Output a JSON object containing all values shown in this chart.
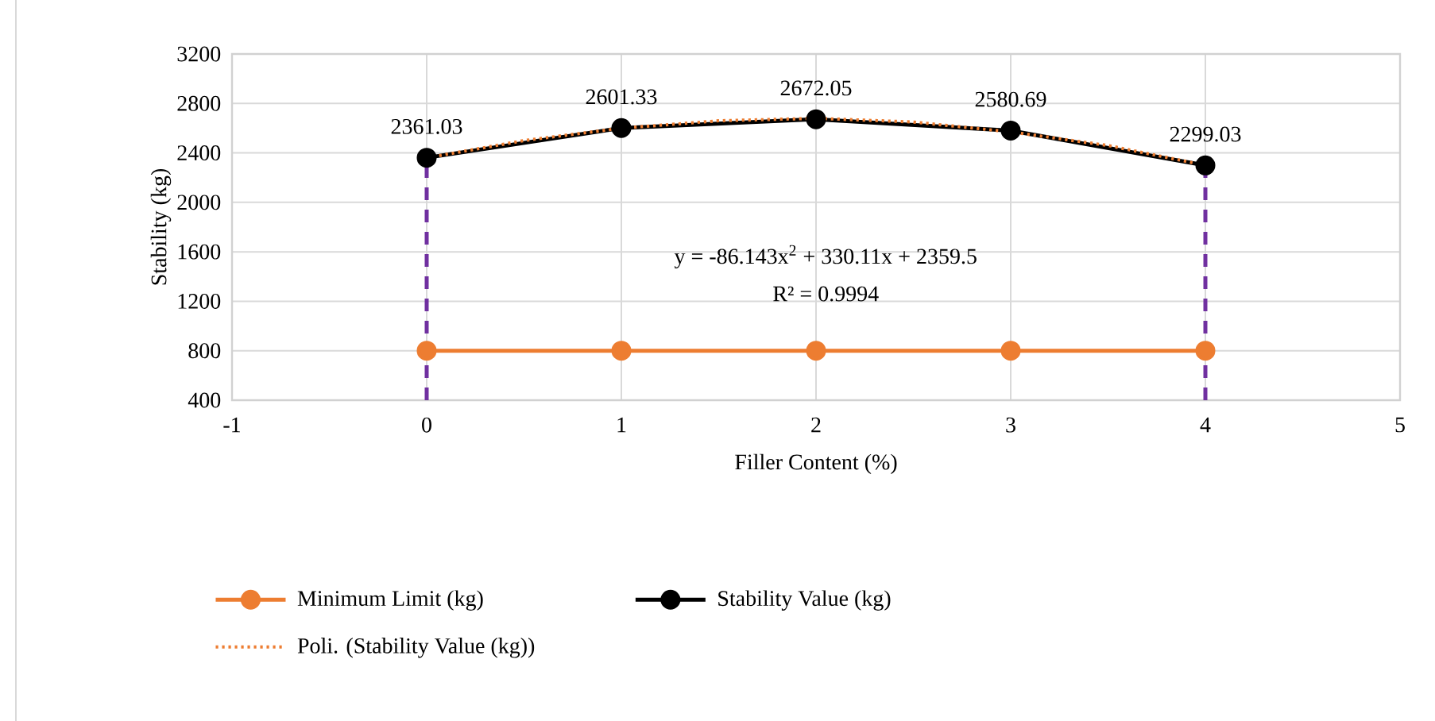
{
  "chart_data": {
    "type": "line",
    "xlabel": "Filler Content (%)",
    "ylabel": "Stability (kg)",
    "xlim": [
      -1,
      5
    ],
    "xticks": [
      -1,
      0,
      1,
      2,
      3,
      4,
      5
    ],
    "ylim": [
      400,
      3200
    ],
    "yticks": [
      400,
      800,
      1200,
      1600,
      2000,
      2400,
      2800,
      3200
    ],
    "grid": true,
    "legend": "bottom",
    "annotations": [
      "y = -86.143x$^{2}$ + 330.11x + 2359.5",
      "R² = 0.9994"
    ],
    "series": [
      {
        "color": "#7030a0",
        "line_style": "dashed",
        "marker": "none",
        "x": [
          0,
          0
        ],
        "values": [
          400,
          2360
        ]
      },
      {
        "color": "#7030a0",
        "line_style": "dashed",
        "marker": "none",
        "x": [
          4,
          4
        ],
        "values": [
          400,
          2300
        ]
      },
      {
        "name": "Minimum Limit (kg)",
        "color": "#ed7d31",
        "line_style": "solid",
        "marker": "circle",
        "x": [
          0,
          1,
          2,
          3,
          4
        ],
        "values": [
          800,
          800,
          800,
          800,
          800
        ]
      },
      {
        "name": "Stability Value (kg)",
        "color": "#000000",
        "line_style": "solid",
        "marker": "circle",
        "x": [
          0,
          1,
          2,
          3,
          4
        ],
        "values": [
          2361.03,
          2601.33,
          2672.05,
          2580.69,
          2299.03
        ],
        "value_labels": [
          "2361.03",
          "2601.33",
          "2672.05",
          "2580.69",
          "2299.03"
        ]
      },
      {
        "name": "Poli. (Stability Value (kg))",
        "color": "#ed7d31",
        "line_style": "dotted",
        "marker": "none",
        "x": [
          0,
          0.5,
          1,
          1.5,
          2,
          2.5,
          3,
          3.5,
          4
        ],
        "values": [
          2360,
          2500,
          2600,
          2660,
          2680,
          2650,
          2570,
          2460,
          2300
        ]
      }
    ]
  }
}
